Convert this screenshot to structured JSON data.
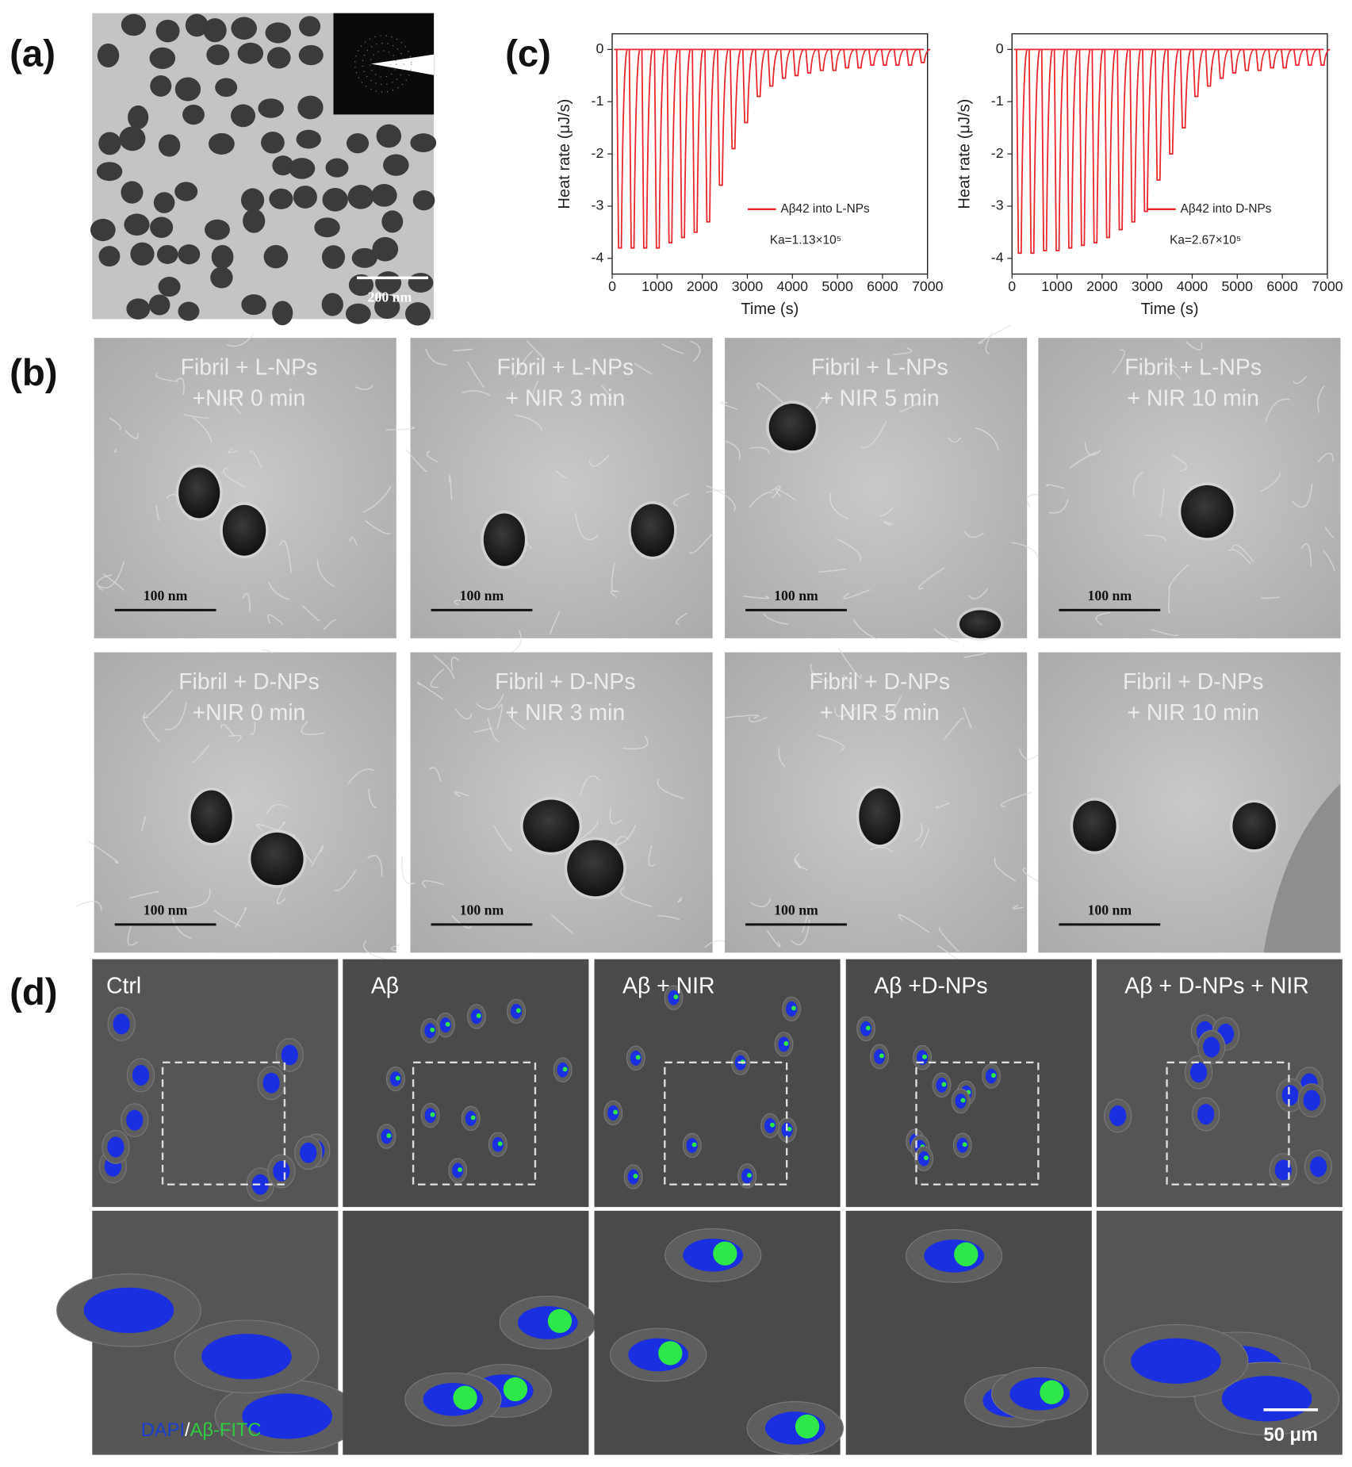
{
  "panels": {
    "a": {
      "label": "(a)",
      "scale_bar": "200 nm"
    },
    "b": {
      "label": "(b)",
      "images": [
        {
          "lines": [
            "Fibril + L-NPs",
            "+NIR 0 min"
          ],
          "scale_bar": "100 nm"
        },
        {
          "lines": [
            "Fibril + L-NPs",
            "+ NIR 3 min"
          ],
          "scale_bar": "100 nm"
        },
        {
          "lines": [
            "Fibril + L-NPs",
            "+ NIR 5 min"
          ],
          "scale_bar": "100 nm"
        },
        {
          "lines": [
            "Fibril + L-NPs",
            "+ NIR 10 min"
          ],
          "scale_bar": "100 nm"
        },
        {
          "lines": [
            "Fibril + D-NPs",
            "+NIR 0 min"
          ],
          "scale_bar": "100 nm"
        },
        {
          "lines": [
            "Fibril + D-NPs",
            "+ NIR 3 min"
          ],
          "scale_bar": "100 nm"
        },
        {
          "lines": [
            "Fibril + D-NPs",
            "+ NIR 5 min"
          ],
          "scale_bar": "100 nm"
        },
        {
          "lines": [
            "Fibril + D-NPs",
            "+ NIR 10 min"
          ],
          "scale_bar": "100 nm"
        }
      ]
    },
    "c": {
      "label": "(c)"
    },
    "d": {
      "label": "(d)",
      "groups": [
        "Ctrl",
        "Aβ",
        "Aβ + NIR",
        "Aβ +D-NPs",
        "Aβ + D-NPs + NIR"
      ],
      "stain_dapi": "DAPI",
      "stain_sep": "/",
      "stain_fitc": "Aβ-FITC",
      "scale_bar": "50 μm"
    }
  },
  "chart_data": [
    {
      "type": "line",
      "xlabel": "Time (s)",
      "ylabel": "Heat rate (μJ/s)",
      "x": [
        100,
        380,
        660,
        940,
        1220,
        1500,
        1780,
        2060,
        2340,
        2620,
        2900,
        3180,
        3460,
        3740,
        4020,
        4300,
        4580,
        4860,
        5140,
        5420,
        5700,
        5980,
        6260,
        6540,
        6820
      ],
      "series": [
        {
          "name": "Aβ42 into L-NPs",
          "color": "#e8262b",
          "values": [
            -3.8,
            -3.8,
            -3.8,
            -3.8,
            -3.7,
            -3.6,
            -3.5,
            -3.3,
            -2.6,
            -1.9,
            -1.4,
            -0.9,
            -0.7,
            -0.55,
            -0.5,
            -0.45,
            -0.4,
            -0.4,
            -0.35,
            -0.35,
            -0.3,
            -0.3,
            -0.3,
            -0.3,
            -0.25
          ]
        }
      ],
      "annotations": [
        "Ka=1.13×10⁵"
      ],
      "legend": "lower right",
      "xlim": [
        0,
        7000
      ],
      "ylim": [
        -4.3,
        0.3
      ],
      "xticks": [
        0,
        1000,
        2000,
        3000,
        4000,
        5000,
        6000,
        7000
      ],
      "yticks": [
        0,
        -1,
        -2,
        -3,
        -4
      ]
    },
    {
      "type": "line",
      "xlabel": "Time (s)",
      "ylabel": "Heat rate (μJ/s)",
      "x": [
        100,
        380,
        660,
        940,
        1220,
        1500,
        1780,
        2060,
        2340,
        2620,
        2900,
        3180,
        3460,
        3740,
        4020,
        4300,
        4580,
        4860,
        5140,
        5420,
        5700,
        5980,
        6260,
        6540,
        6820
      ],
      "series": [
        {
          "name": "Aβ42 into D-NPs",
          "color": "#e8262b",
          "values": [
            -3.9,
            -3.9,
            -3.85,
            -3.85,
            -3.8,
            -3.75,
            -3.7,
            -3.6,
            -3.45,
            -3.3,
            -3.1,
            -2.5,
            -2.0,
            -1.5,
            -0.9,
            -0.7,
            -0.55,
            -0.45,
            -0.4,
            -0.4,
            -0.35,
            -0.35,
            -0.3,
            -0.3,
            -0.3
          ]
        }
      ],
      "annotations": [
        "Ka=2.67×10⁵"
      ],
      "legend": "lower right",
      "xlim": [
        0,
        7000
      ],
      "ylim": [
        -4.3,
        0.3
      ],
      "xticks": [
        0,
        1000,
        2000,
        3000,
        4000,
        5000,
        6000,
        7000
      ],
      "yticks": [
        0,
        -1,
        -2,
        -3,
        -4
      ]
    }
  ]
}
